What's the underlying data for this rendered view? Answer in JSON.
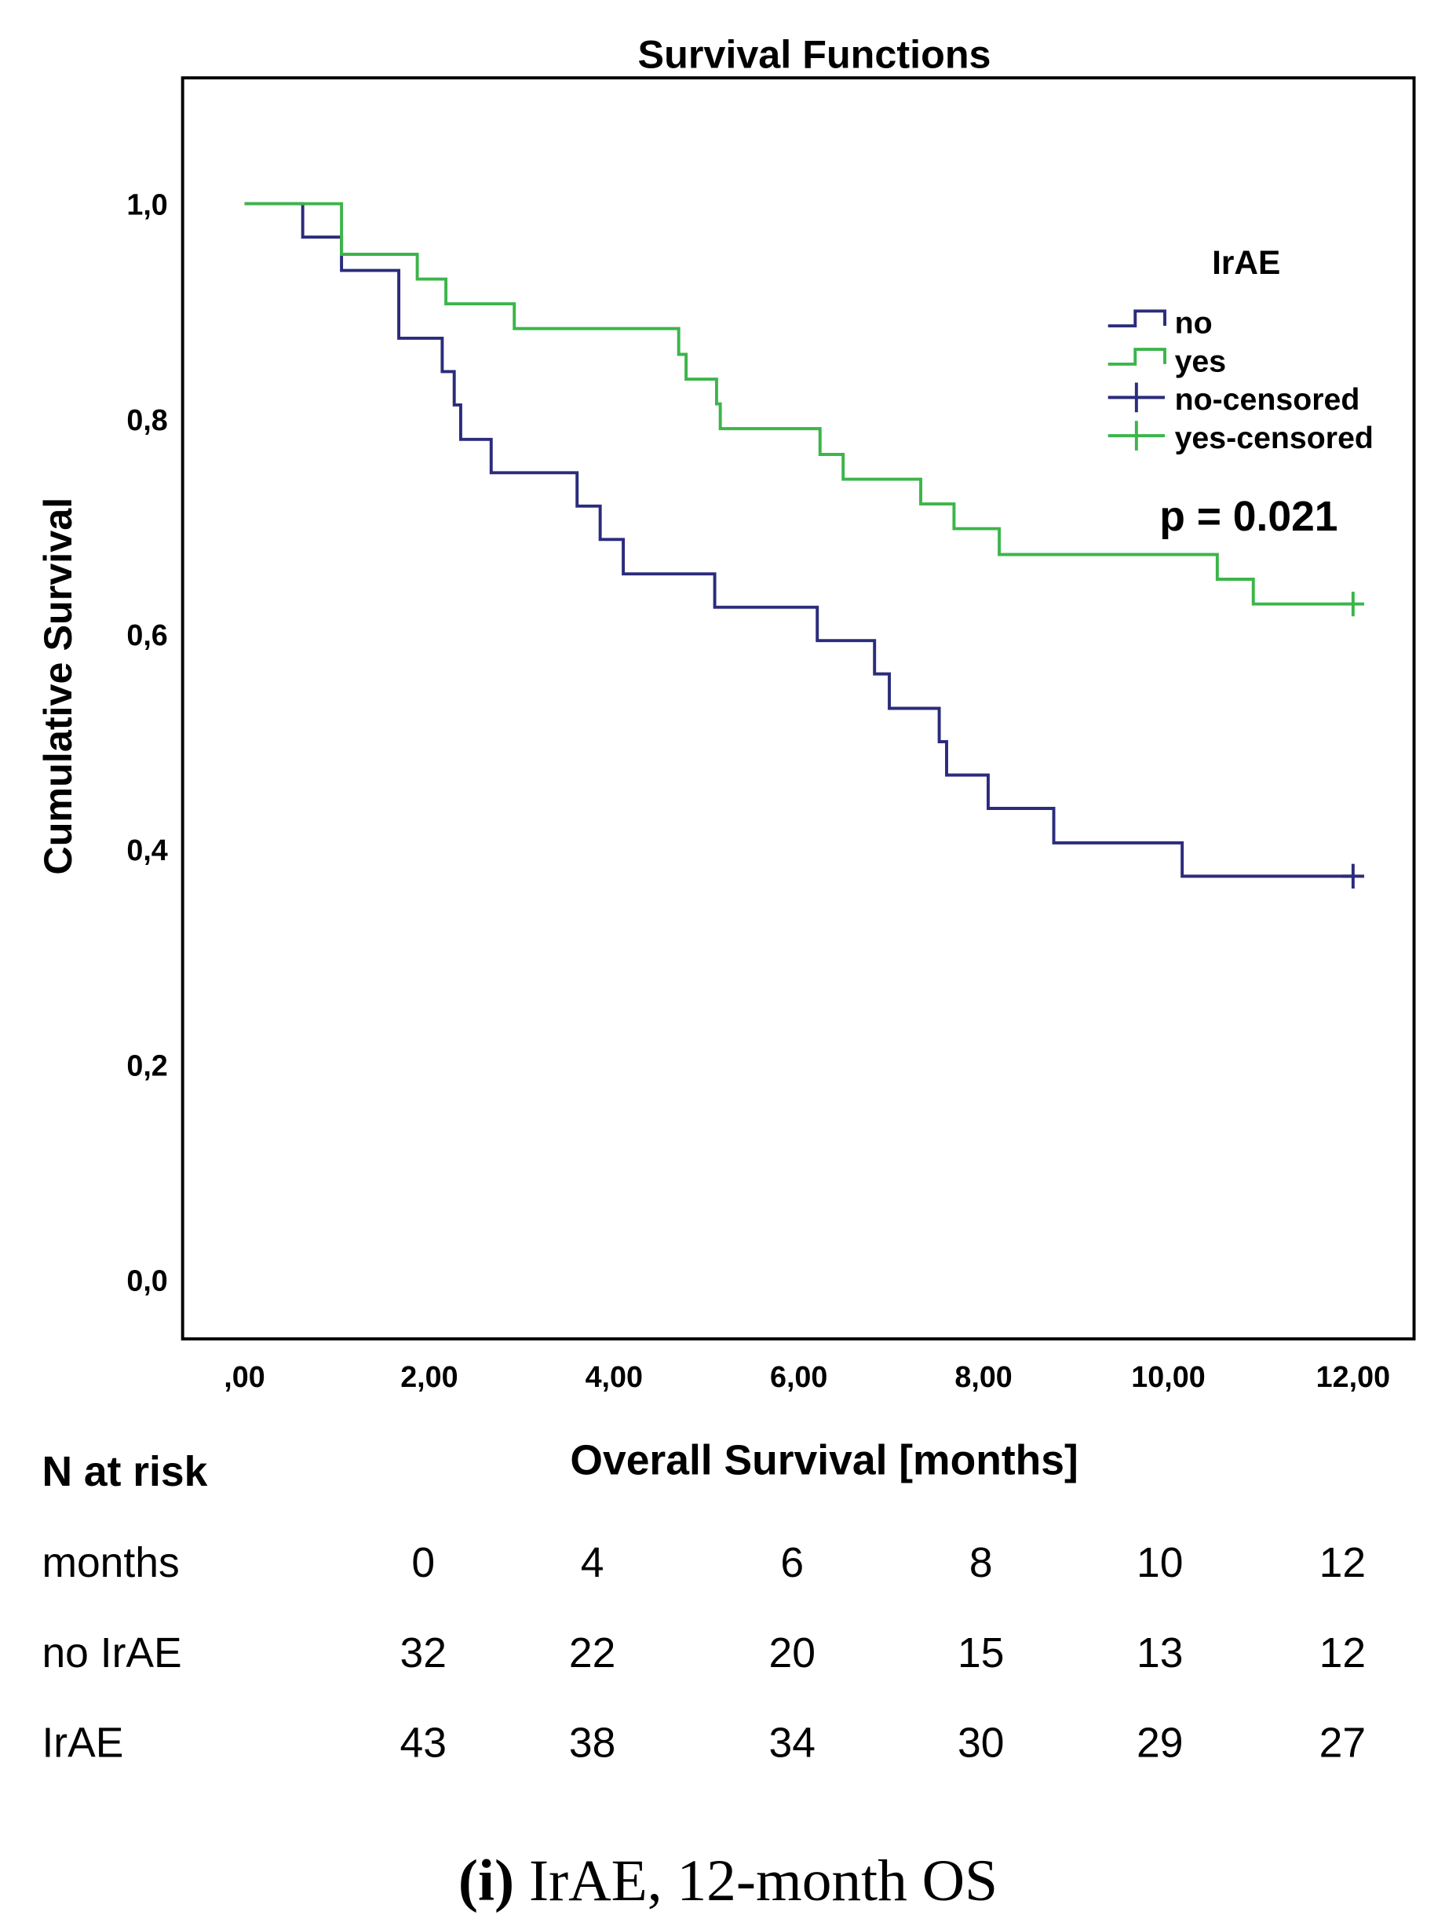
{
  "chart_data": {
    "type": "line",
    "subtype": "kaplan-meier",
    "title": "Survival Functions",
    "xlabel": "Overall Survival [months]",
    "ylabel": "Cumulative Survival",
    "xlim": [
      -0.67,
      12.66
    ],
    "ylim": [
      -0.055,
      1.117
    ],
    "xticks": [
      0,
      2,
      4,
      6,
      8,
      10,
      12
    ],
    "xtick_labels": [
      ",00",
      "2,00",
      "4,00",
      "6,00",
      "8,00",
      "10,00",
      "12,00"
    ],
    "yticks": [
      0,
      0.2,
      0.4,
      0.6,
      0.8,
      1.0
    ],
    "ytick_labels": [
      "0,0",
      "0,2",
      "0,4",
      "0,6",
      "0,8",
      "1,0"
    ],
    "grid": false,
    "legend": {
      "title": "IrAE",
      "placement": "top-right",
      "entries": [
        "no",
        "yes",
        "no-censored",
        "yes-censored"
      ]
    },
    "annotation": "p = 0.021",
    "series": [
      {
        "name": "no",
        "color": "#2b2c7c",
        "start": 1.0,
        "steps": [
          [
            0.63,
            0.969
          ],
          [
            1.05,
            0.938
          ],
          [
            1.67,
            0.875
          ],
          [
            2.14,
            0.844
          ],
          [
            2.27,
            0.813
          ],
          [
            2.34,
            0.781
          ],
          [
            2.67,
            0.75
          ],
          [
            3.6,
            0.719
          ],
          [
            3.85,
            0.688
          ],
          [
            4.1,
            0.656
          ],
          [
            5.09,
            0.625
          ],
          [
            6.2,
            0.594
          ],
          [
            6.82,
            0.563
          ],
          [
            6.98,
            0.531
          ],
          [
            7.52,
            0.5
          ],
          [
            7.6,
            0.469
          ],
          [
            8.05,
            0.438
          ],
          [
            8.76,
            0.406
          ],
          [
            10.15,
            0.375
          ]
        ],
        "end": 12,
        "censored": [
          [
            12,
            0.375
          ]
        ]
      },
      {
        "name": "yes",
        "color": "#3cb54a",
        "start": 1.0,
        "steps": [
          [
            1.05,
            0.953
          ],
          [
            1.87,
            0.93
          ],
          [
            2.18,
            0.907
          ],
          [
            2.92,
            0.884
          ],
          [
            4.7,
            0.86
          ],
          [
            4.78,
            0.837
          ],
          [
            5.11,
            0.814
          ],
          [
            5.15,
            0.791
          ],
          [
            6.23,
            0.767
          ],
          [
            6.48,
            0.744
          ],
          [
            7.32,
            0.721
          ],
          [
            7.68,
            0.698
          ],
          [
            8.17,
            0.674
          ],
          [
            10.53,
            0.651
          ],
          [
            10.92,
            0.628
          ]
        ],
        "end": 12,
        "censored": [
          [
            12,
            0.628
          ]
        ]
      }
    ]
  },
  "risk_table": {
    "heading": "N at risk",
    "rows": [
      {
        "label": "months",
        "values": [
          "0",
          "4",
          "6",
          "8",
          "10",
          "12"
        ]
      },
      {
        "label": "no IrAE",
        "values": [
          "32",
          "22",
          "20",
          "15",
          "13",
          "12"
        ]
      },
      {
        "label": "IrAE",
        "values": [
          "43",
          "38",
          "34",
          "30",
          "29",
          "27"
        ]
      }
    ]
  },
  "caption": {
    "label": "(i)",
    "text": " IrAE, 12-month OS"
  }
}
